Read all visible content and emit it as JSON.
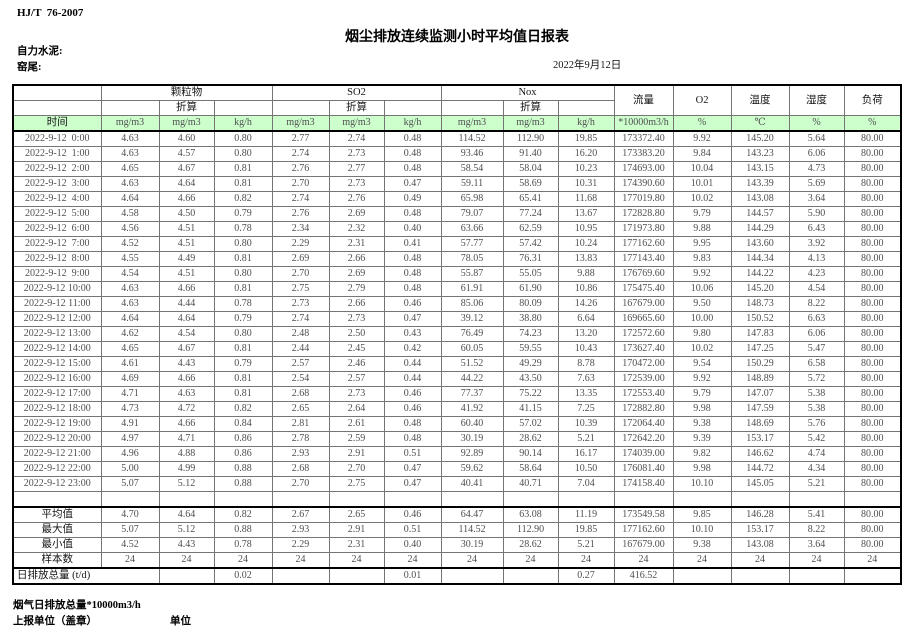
{
  "meta": {
    "standard": "HJ/T  76-2007",
    "title": "烟尘排放连续监测小时平均值日报表",
    "company": "自力水泥:",
    "site": "窑尾:",
    "date": "2022年9月12日"
  },
  "colors": {
    "header_green": "#ccffcc",
    "grid_line": "#757575",
    "heavy_line": "#000000"
  },
  "table": {
    "time_header": "时间",
    "groups": [
      {
        "label": "颗粒物",
        "sub": "折算"
      },
      {
        "label": "SO2",
        "sub": "折算"
      },
      {
        "label": "Nox",
        "sub": "折算"
      }
    ],
    "single_cols": [
      {
        "label": "流量",
        "unit": "*10000m3/h"
      },
      {
        "label": "O2",
        "unit": "%"
      },
      {
        "label": "温度",
        "unit": "℃"
      },
      {
        "label": "湿度",
        "unit": "%"
      },
      {
        "label": "负荷",
        "unit": "%"
      }
    ],
    "col_units": [
      "mg/m3",
      "mg/m3",
      "kg/h",
      "mg/m3",
      "mg/m3",
      "kg/h",
      "mg/m3",
      "mg/m3",
      "kg/h",
      "*10000m3/h",
      "%",
      "℃",
      "%",
      "%"
    ],
    "rows": [
      [
        "2022-9-12  0:00",
        "4.63",
        "4.60",
        "0.80",
        "2.77",
        "2.74",
        "0.48",
        "114.52",
        "112.90",
        "19.85",
        "173372.40",
        "9.92",
        "145.20",
        "5.64",
        "80.00"
      ],
      [
        "2022-9-12  1:00",
        "4.63",
        "4.57",
        "0.80",
        "2.74",
        "2.73",
        "0.48",
        "93.46",
        "91.40",
        "16.20",
        "173383.20",
        "9.84",
        "143.23",
        "6.06",
        "80.00"
      ],
      [
        "2022-9-12  2:00",
        "4.65",
        "4.67",
        "0.81",
        "2.76",
        "2.77",
        "0.48",
        "58.54",
        "58.04",
        "10.23",
        "174693.00",
        "10.04",
        "143.15",
        "4.73",
        "80.00"
      ],
      [
        "2022-9-12  3:00",
        "4.63",
        "4.64",
        "0.81",
        "2.70",
        "2.73",
        "0.47",
        "59.11",
        "58.69",
        "10.31",
        "174390.60",
        "10.01",
        "143.39",
        "5.69",
        "80.00"
      ],
      [
        "2022-9-12  4:00",
        "4.64",
        "4.66",
        "0.82",
        "2.74",
        "2.76",
        "0.49",
        "65.98",
        "65.41",
        "11.68",
        "177019.80",
        "10.02",
        "143.08",
        "3.64",
        "80.00"
      ],
      [
        "2022-9-12  5:00",
        "4.58",
        "4.50",
        "0.79",
        "2.76",
        "2.69",
        "0.48",
        "79.07",
        "77.24",
        "13.67",
        "172828.80",
        "9.79",
        "144.57",
        "5.90",
        "80.00"
      ],
      [
        "2022-9-12  6:00",
        "4.56",
        "4.51",
        "0.78",
        "2.34",
        "2.32",
        "0.40",
        "63.66",
        "62.59",
        "10.95",
        "171973.80",
        "9.88",
        "144.29",
        "6.43",
        "80.00"
      ],
      [
        "2022-9-12  7:00",
        "4.52",
        "4.51",
        "0.80",
        "2.29",
        "2.31",
        "0.41",
        "57.77",
        "57.42",
        "10.24",
        "177162.60",
        "9.95",
        "143.60",
        "3.92",
        "80.00"
      ],
      [
        "2022-9-12  8:00",
        "4.55",
        "4.49",
        "0.81",
        "2.69",
        "2.66",
        "0.48",
        "78.05",
        "76.31",
        "13.83",
        "177143.40",
        "9.83",
        "144.34",
        "4.13",
        "80.00"
      ],
      [
        "2022-9-12  9:00",
        "4.54",
        "4.51",
        "0.80",
        "2.70",
        "2.69",
        "0.48",
        "55.87",
        "55.05",
        "9.88",
        "176769.60",
        "9.92",
        "144.22",
        "4.23",
        "80.00"
      ],
      [
        "2022-9-12 10:00",
        "4.63",
        "4.66",
        "0.81",
        "2.75",
        "2.79",
        "0.48",
        "61.91",
        "61.90",
        "10.86",
        "175475.40",
        "10.06",
        "145.20",
        "4.54",
        "80.00"
      ],
      [
        "2022-9-12 11:00",
        "4.63",
        "4.44",
        "0.78",
        "2.73",
        "2.66",
        "0.46",
        "85.06",
        "80.09",
        "14.26",
        "167679.00",
        "9.50",
        "148.73",
        "8.22",
        "80.00"
      ],
      [
        "2022-9-12 12:00",
        "4.64",
        "4.64",
        "0.79",
        "2.74",
        "2.73",
        "0.47",
        "39.12",
        "38.80",
        "6.64",
        "169665.60",
        "10.00",
        "150.52",
        "6.63",
        "80.00"
      ],
      [
        "2022-9-12 13:00",
        "4.62",
        "4.54",
        "0.80",
        "2.48",
        "2.50",
        "0.43",
        "76.49",
        "74.23",
        "13.20",
        "172572.60",
        "9.80",
        "147.83",
        "6.06",
        "80.00"
      ],
      [
        "2022-9-12 14:00",
        "4.65",
        "4.67",
        "0.81",
        "2.44",
        "2.45",
        "0.42",
        "60.05",
        "59.55",
        "10.43",
        "173627.40",
        "10.02",
        "147.25",
        "5.47",
        "80.00"
      ],
      [
        "2022-9-12 15:00",
        "4.61",
        "4.43",
        "0.79",
        "2.57",
        "2.46",
        "0.44",
        "51.52",
        "49.29",
        "8.78",
        "170472.00",
        "9.54",
        "150.29",
        "6.58",
        "80.00"
      ],
      [
        "2022-9-12 16:00",
        "4.69",
        "4.66",
        "0.81",
        "2.54",
        "2.57",
        "0.44",
        "44.22",
        "43.50",
        "7.63",
        "172539.00",
        "9.92",
        "148.89",
        "5.72",
        "80.00"
      ],
      [
        "2022-9-12 17:00",
        "4.71",
        "4.63",
        "0.81",
        "2.68",
        "2.73",
        "0.46",
        "77.37",
        "75.22",
        "13.35",
        "172553.40",
        "9.79",
        "147.07",
        "5.38",
        "80.00"
      ],
      [
        "2022-9-12 18:00",
        "4.73",
        "4.72",
        "0.82",
        "2.65",
        "2.64",
        "0.46",
        "41.92",
        "41.15",
        "7.25",
        "172882.80",
        "9.98",
        "147.59",
        "5.38",
        "80.00"
      ],
      [
        "2022-9-12 19:00",
        "4.91",
        "4.66",
        "0.84",
        "2.81",
        "2.61",
        "0.48",
        "60.40",
        "57.02",
        "10.39",
        "172064.40",
        "9.38",
        "148.69",
        "5.76",
        "80.00"
      ],
      [
        "2022-9-12 20:00",
        "4.97",
        "4.71",
        "0.86",
        "2.78",
        "2.59",
        "0.48",
        "30.19",
        "28.62",
        "5.21",
        "172642.20",
        "9.39",
        "153.17",
        "5.42",
        "80.00"
      ],
      [
        "2022-9-12 21:00",
        "4.96",
        "4.88",
        "0.86",
        "2.93",
        "2.91",
        "0.51",
        "92.89",
        "90.14",
        "16.17",
        "174039.00",
        "9.82",
        "146.62",
        "4.74",
        "80.00"
      ],
      [
        "2022-9-12 22:00",
        "5.00",
        "4.99",
        "0.88",
        "2.68",
        "2.70",
        "0.47",
        "59.62",
        "58.64",
        "10.50",
        "176081.40",
        "9.98",
        "144.72",
        "4.34",
        "80.00"
      ],
      [
        "2022-9-12 23:00",
        "5.07",
        "5.12",
        "0.88",
        "2.70",
        "2.75",
        "0.47",
        "40.41",
        "40.71",
        "7.04",
        "174158.40",
        "10.10",
        "145.05",
        "5.21",
        "80.00"
      ]
    ],
    "summary": [
      {
        "label": "平均值",
        "values": [
          "4.70",
          "4.64",
          "0.82",
          "2.67",
          "2.65",
          "0.46",
          "64.47",
          "63.08",
          "11.19",
          "173549.58",
          "9.85",
          "146.28",
          "5.41",
          "80.00"
        ]
      },
      {
        "label": "最大值",
        "values": [
          "5.07",
          "5.12",
          "0.88",
          "2.93",
          "2.91",
          "0.51",
          "114.52",
          "112.90",
          "19.85",
          "177162.60",
          "10.10",
          "153.17",
          "8.22",
          "80.00"
        ]
      },
      {
        "label": "最小值",
        "values": [
          "4.52",
          "4.43",
          "0.78",
          "2.29",
          "2.31",
          "0.40",
          "30.19",
          "28.62",
          "5.21",
          "167679.00",
          "9.38",
          "143.08",
          "3.64",
          "80.00"
        ]
      },
      {
        "label": "样本数",
        "values": [
          "24",
          "24",
          "24",
          "24",
          "24",
          "24",
          "24",
          "24",
          "24",
          "24",
          "24",
          "24",
          "24",
          "24"
        ]
      }
    ],
    "daily_total": {
      "label": "日排放总量 (t/d)",
      "values": [
        "",
        "0.02",
        "",
        "",
        "0.01",
        "",
        "",
        "0.27",
        "416.52",
        "",
        "",
        "",
        ""
      ]
    }
  },
  "footer": {
    "line1": "烟气日排放总量*10000m3/h",
    "line2": "上报单位（盖章）",
    "unit_label": "单位"
  }
}
